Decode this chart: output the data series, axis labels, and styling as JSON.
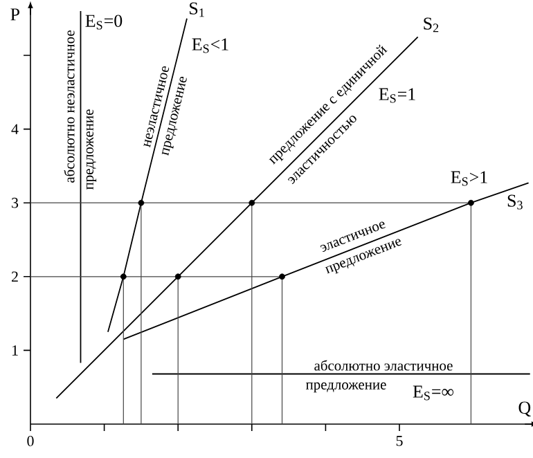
{
  "chart_data": {
    "type": "line",
    "xlabel": "Q",
    "ylabel": "P",
    "xlim": [
      0,
      6.85
    ],
    "ylim": [
      0,
      5.7
    ],
    "xticks": [
      {
        "value": 0,
        "label": "0"
      },
      {
        "value": 1,
        "label": null
      },
      {
        "value": 2,
        "label": null
      },
      {
        "value": 3,
        "label": null
      },
      {
        "value": 4,
        "label": null
      },
      5
    ],
    "yticks": [
      1,
      2,
      3,
      4,
      {
        "value": 5,
        "label": null
      }
    ],
    "series": [
      {
        "name": "S$_{1}$",
        "color": "#000000",
        "x": [
          1.05,
          1.26,
          1.5,
          2.12
        ],
        "values": [
          1.25,
          2,
          3,
          5.5
        ]
      },
      {
        "name": "S$_{2}$",
        "color": "#000000",
        "x": [
          0.35,
          2,
          3,
          5.25
        ],
        "values": [
          0.35,
          2,
          3,
          5.25
        ]
      },
      {
        "name": "S$_{3}$",
        "color": "#000000",
        "x": [
          1.26,
          3.41,
          5.97,
          6.75
        ],
        "values": [
          1.15,
          2,
          3,
          3.27
        ]
      },
      {
        "color": "#000000",
        "x": [
          0.68,
          0.68
        ],
        "values": [
          0.83,
          5.6
        ]
      },
      {
        "color": "#000000",
        "x": [
          1.65,
          6.77
        ],
        "values": [
          0.68,
          0.68
        ]
      },
      {
        "color": "#444444",
        "x": [
          0,
          5.97,
          5.97
        ],
        "values": [
          3,
          3,
          0
        ]
      },
      {
        "color": "#444444",
        "x": [
          0,
          3.41,
          3.41
        ],
        "values": [
          2,
          2,
          0
        ]
      },
      {
        "color": "#444444",
        "x": [
          1.26,
          1.26
        ],
        "values": [
          0,
          2
        ]
      },
      {
        "color": "#444444",
        "x": [
          1.5,
          1.5
        ],
        "values": [
          0,
          3
        ]
      },
      {
        "color": "#444444",
        "x": [
          2,
          2
        ],
        "values": [
          0,
          2
        ]
      },
      {
        "color": "#444444",
        "x": [
          3,
          3
        ],
        "values": [
          0,
          3
        ]
      },
      {
        "type": "scatter",
        "color": "#000000",
        "x": [
          1.26,
          1.5,
          2,
          3,
          3.41,
          5.97
        ],
        "values": [
          2,
          3,
          2,
          3,
          2,
          3
        ]
      }
    ],
    "annotations": [
      "E$_{S}$=0",
      "E$_{S}$<1",
      "E$_{S}$=1",
      "E$_{S}$>1",
      "E$_{S}$=∞",
      "абсолютно неэластичное",
      "предложение",
      "неэластичное",
      "предложение",
      "предложение с единичной",
      "эластичностью",
      "эластичное",
      "предложение",
      "абсолютно эластичное",
      "предложение"
    ]
  }
}
